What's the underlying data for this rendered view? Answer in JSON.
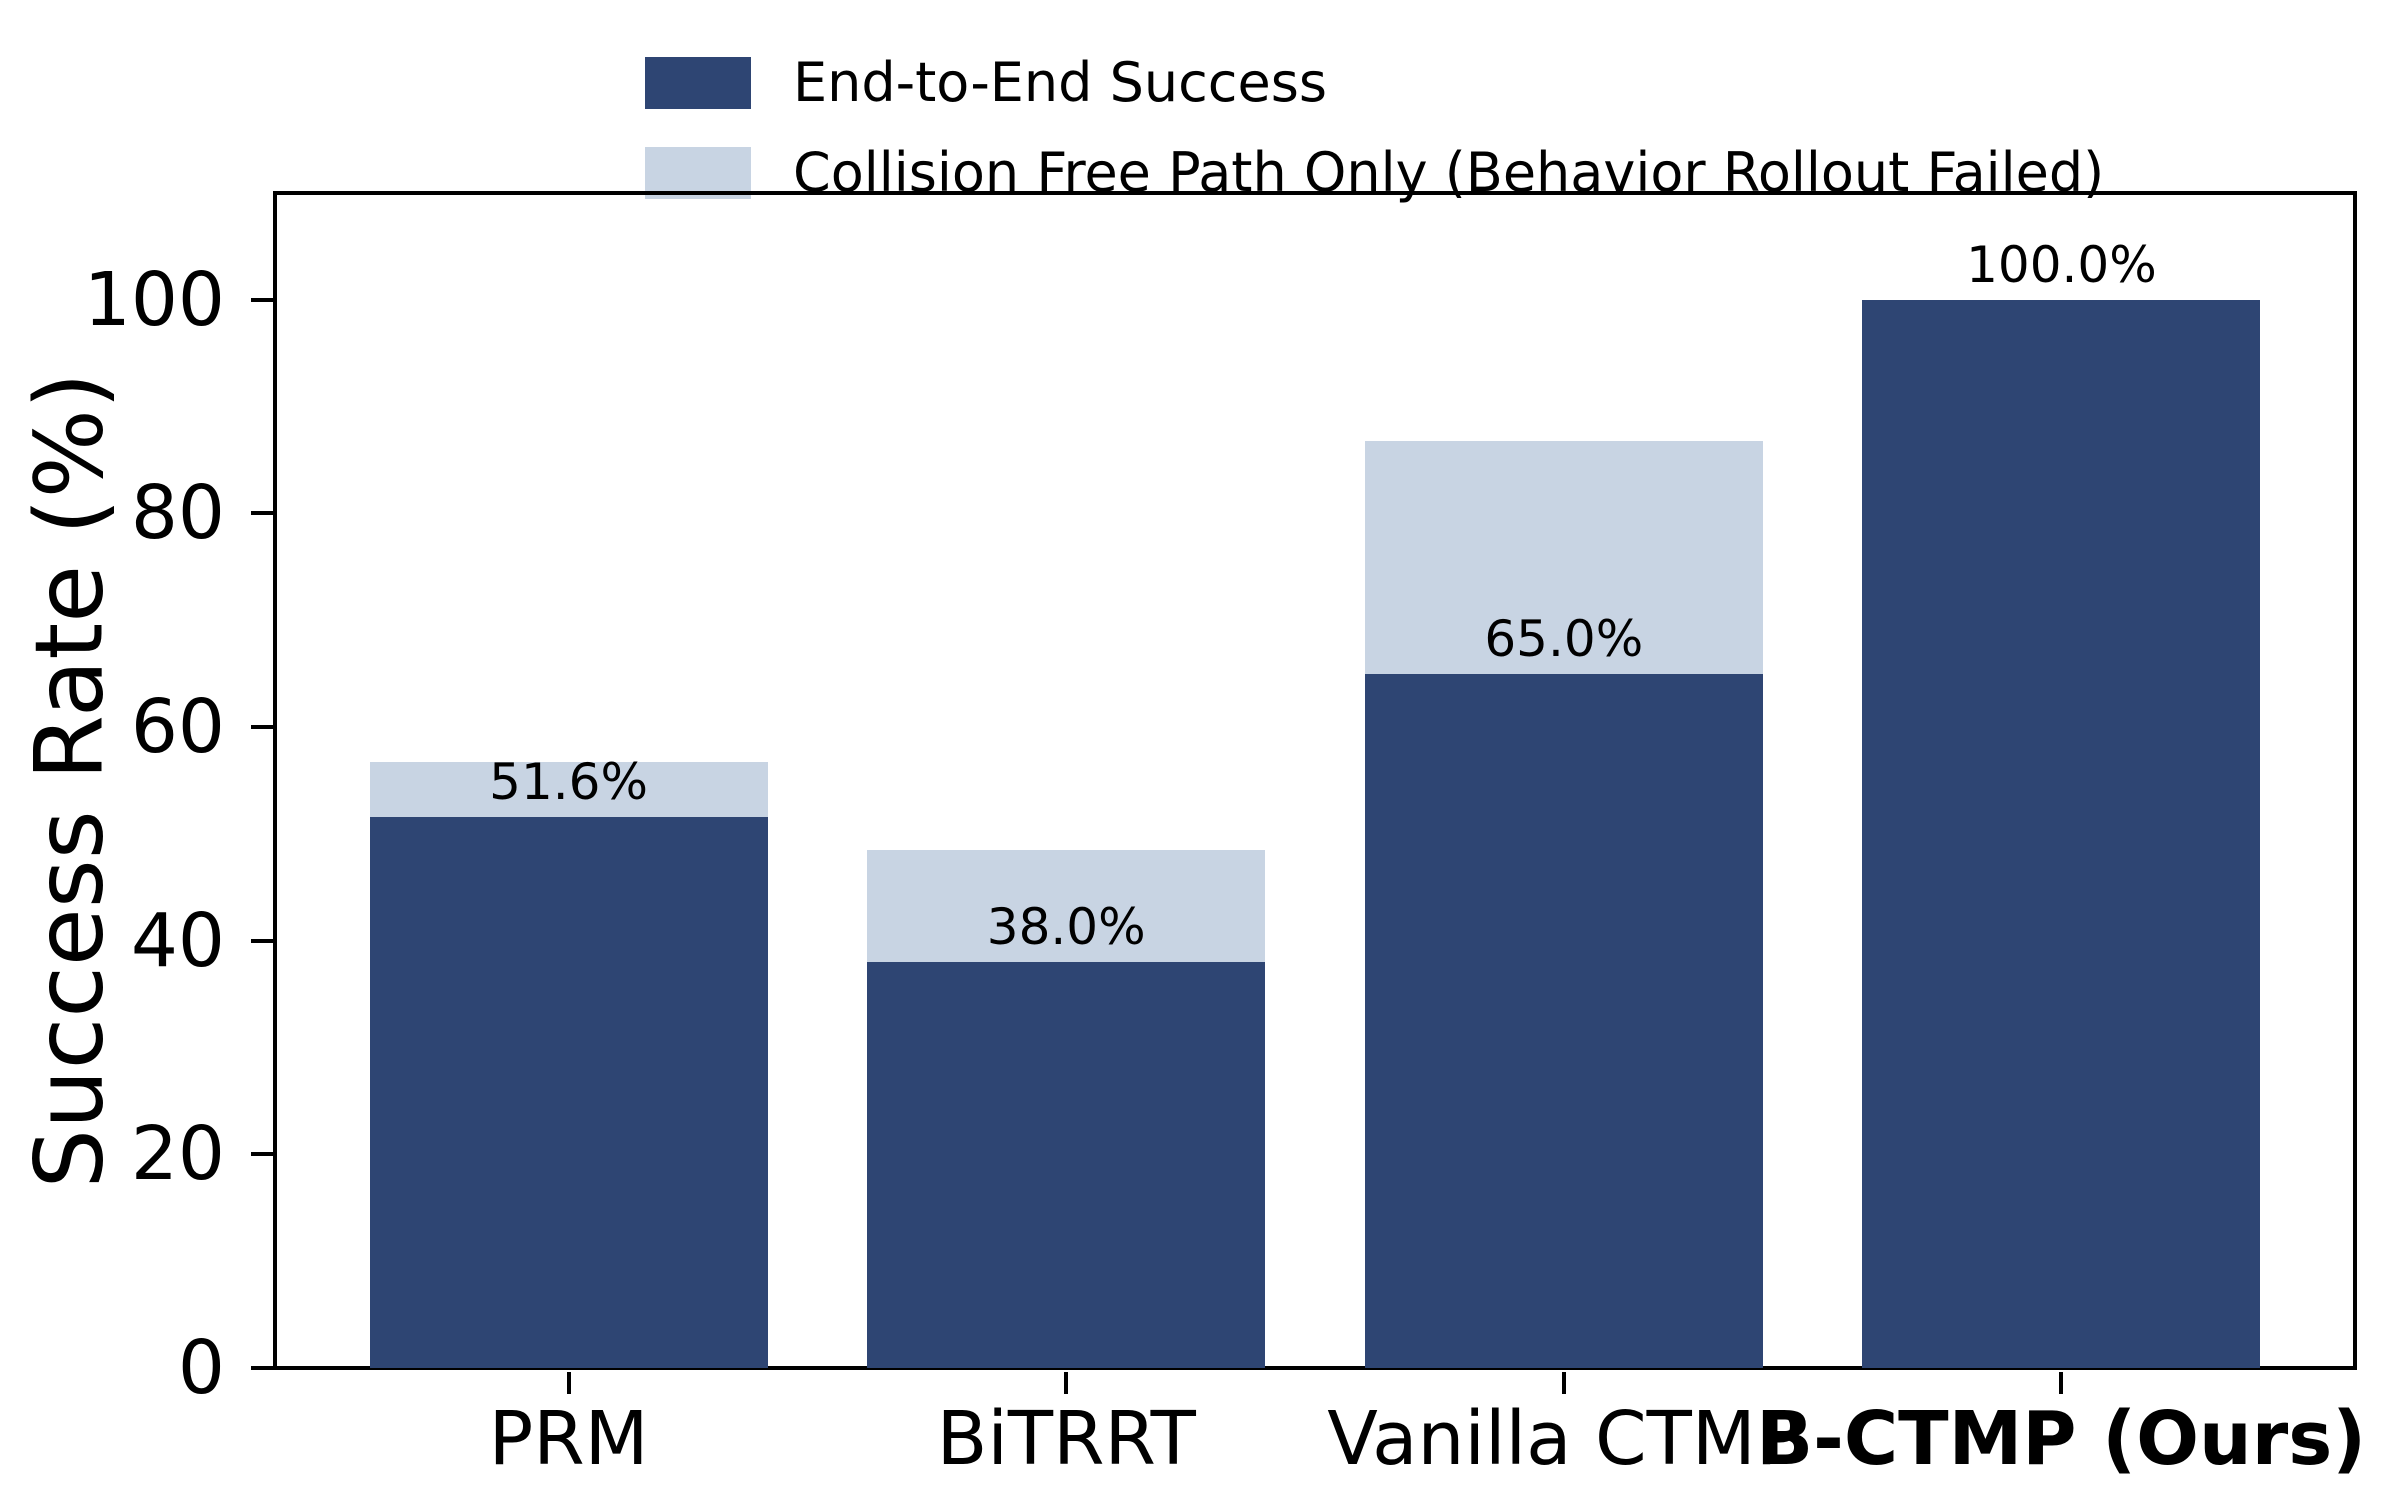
{
  "chart_data": {
    "type": "bar",
    "stacked": true,
    "title": "",
    "xlabel": "",
    "ylabel": "Success Rate (%)",
    "ylim": [
      0,
      110
    ],
    "yticks": [
      0,
      20,
      40,
      60,
      80,
      100
    ],
    "grid": false,
    "legend_position": "top-left above plot",
    "categories": [
      "PRM",
      "BiTRRT",
      "Vanilla CTMP",
      "B-CTMP (Ours)"
    ],
    "bold_categories": [
      "B-CTMP (Ours)"
    ],
    "series": [
      {
        "name": "End-to-End Success",
        "color": "#2e4573",
        "values": [
          51.6,
          38.0,
          65.0,
          100.0
        ]
      },
      {
        "name": "Collision Free Path Only (Behavior Rollout Failed)",
        "color": "#c8d4e3",
        "values": [
          5.1,
          10.5,
          21.8,
          0.0
        ]
      }
    ],
    "stack_totals": [
      56.7,
      48.5,
      86.8,
      100.0
    ],
    "bar_labels": [
      "51.6%",
      "38.0%",
      "65.0%",
      "100.0%"
    ]
  }
}
